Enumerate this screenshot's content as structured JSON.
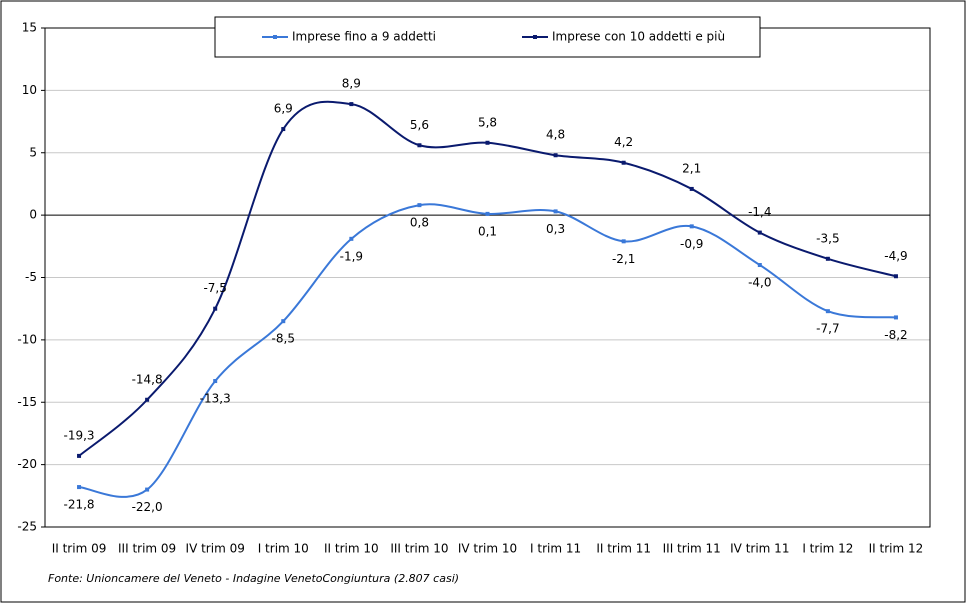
{
  "chart_data": {
    "type": "line",
    "categories": [
      "II trim 09",
      "III trim 09",
      "IV trim 09",
      "I trim 10",
      "II trim 10",
      "III trim 10",
      "IV trim 10",
      "I trim 11",
      "II trim 11",
      "III trim 11",
      "IV trim 11",
      "I trim 12",
      "II trim 12"
    ],
    "series": [
      {
        "name": "Imprese fino a 9 addetti",
        "color": "#3a78d8",
        "values": [
          -21.8,
          -22.0,
          -13.3,
          -8.5,
          -1.9,
          0.8,
          0.1,
          0.3,
          -2.1,
          -0.9,
          -4.0,
          -7.7,
          -8.2
        ],
        "value_labels": [
          "-21,8",
          "-22,0",
          "-13,3",
          "-8,5",
          "-1,9",
          "0,8",
          "0,1",
          "0,3",
          "-2,1",
          "-0,9",
          "-4,0",
          "-7,7",
          "-8,2"
        ]
      },
      {
        "name": "Imprese con 10 addetti e più",
        "color": "#0a1a6e",
        "values": [
          -19.3,
          -14.8,
          -7.5,
          6.9,
          8.9,
          5.6,
          5.8,
          4.8,
          4.2,
          2.1,
          -1.4,
          -3.5,
          -4.9
        ],
        "value_labels": [
          "-19,3",
          "-14,8",
          "-7,5",
          "6,9",
          "8,9",
          "5,6",
          "5,8",
          "4,8",
          "4,2",
          "2,1",
          "-1,4",
          "-3,5",
          "-4,9"
        ]
      }
    ],
    "ylim": [
      -25,
      15
    ],
    "yticks": [
      -25,
      -20,
      -15,
      -10,
      -5,
      0,
      5,
      10,
      15
    ],
    "grid": true,
    "source": "Fonte: Unioncamere del Veneto - Indagine VenetoCongiuntura (2.807 casi)"
  }
}
